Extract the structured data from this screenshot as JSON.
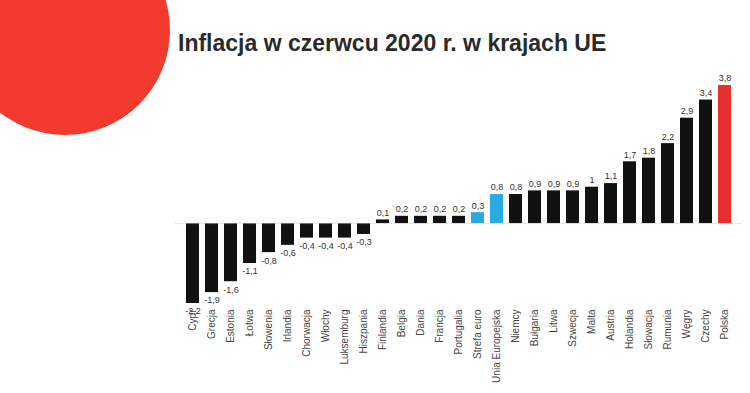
{
  "chart_data": {
    "type": "bar",
    "title": "Inflacja w czerwcu 2020 r. w krajach UE",
    "categories": [
      "Cypr",
      "Grecja",
      "Estonia",
      "Łotwa",
      "Słowenia",
      "Irlandia",
      "Chorwacja",
      "Włochy",
      "Luksemburg",
      "Hiszpania",
      "Finlandia",
      "Belgia",
      "Dania",
      "Francja",
      "Portugalia",
      "Strefa euro",
      "Unia Europejska",
      "Niemcy",
      "Bułgaria",
      "Litwa",
      "Szwecja",
      "Malta",
      "Austria",
      "Holandia",
      "Słowacja",
      "Rumunia",
      "Węgry",
      "Czechy",
      "Polska"
    ],
    "values": [
      -2.2,
      -1.9,
      -1.6,
      -1.1,
      -0.8,
      -0.6,
      -0.4,
      -0.4,
      -0.4,
      -0.3,
      0.1,
      0.2,
      0.2,
      0.2,
      0.2,
      0.3,
      0.8,
      0.8,
      0.9,
      0.9,
      0.9,
      1,
      1.1,
      1.7,
      1.8,
      2.2,
      2.9,
      3.4,
      3.8
    ],
    "value_labels": [
      "-2,2",
      "-1,9",
      "-1,6",
      "-1,1",
      "-0,8",
      "-0,6",
      "-0,4",
      "-0,4",
      "-0,4",
      "-0,3",
      "0,1",
      "0,2",
      "0,2",
      "0,2",
      "0,2",
      "0,3",
      "0,8",
      "0,8",
      "0,9",
      "0,9",
      "0,9",
      "1",
      "1,1",
      "1,7",
      "1,8",
      "2,2",
      "2,9",
      "3,4",
      "3,8"
    ],
    "colors": [
      "#111111",
      "#111111",
      "#111111",
      "#111111",
      "#111111",
      "#111111",
      "#111111",
      "#111111",
      "#111111",
      "#111111",
      "#111111",
      "#111111",
      "#111111",
      "#111111",
      "#111111",
      "#29abe2",
      "#29abe2",
      "#111111",
      "#111111",
      "#111111",
      "#111111",
      "#111111",
      "#111111",
      "#111111",
      "#111111",
      "#111111",
      "#111111",
      "#111111",
      "#e8312f"
    ],
    "ylim": [
      -2.2,
      3.8
    ],
    "data_labels": true,
    "tick_labels": "x"
  }
}
